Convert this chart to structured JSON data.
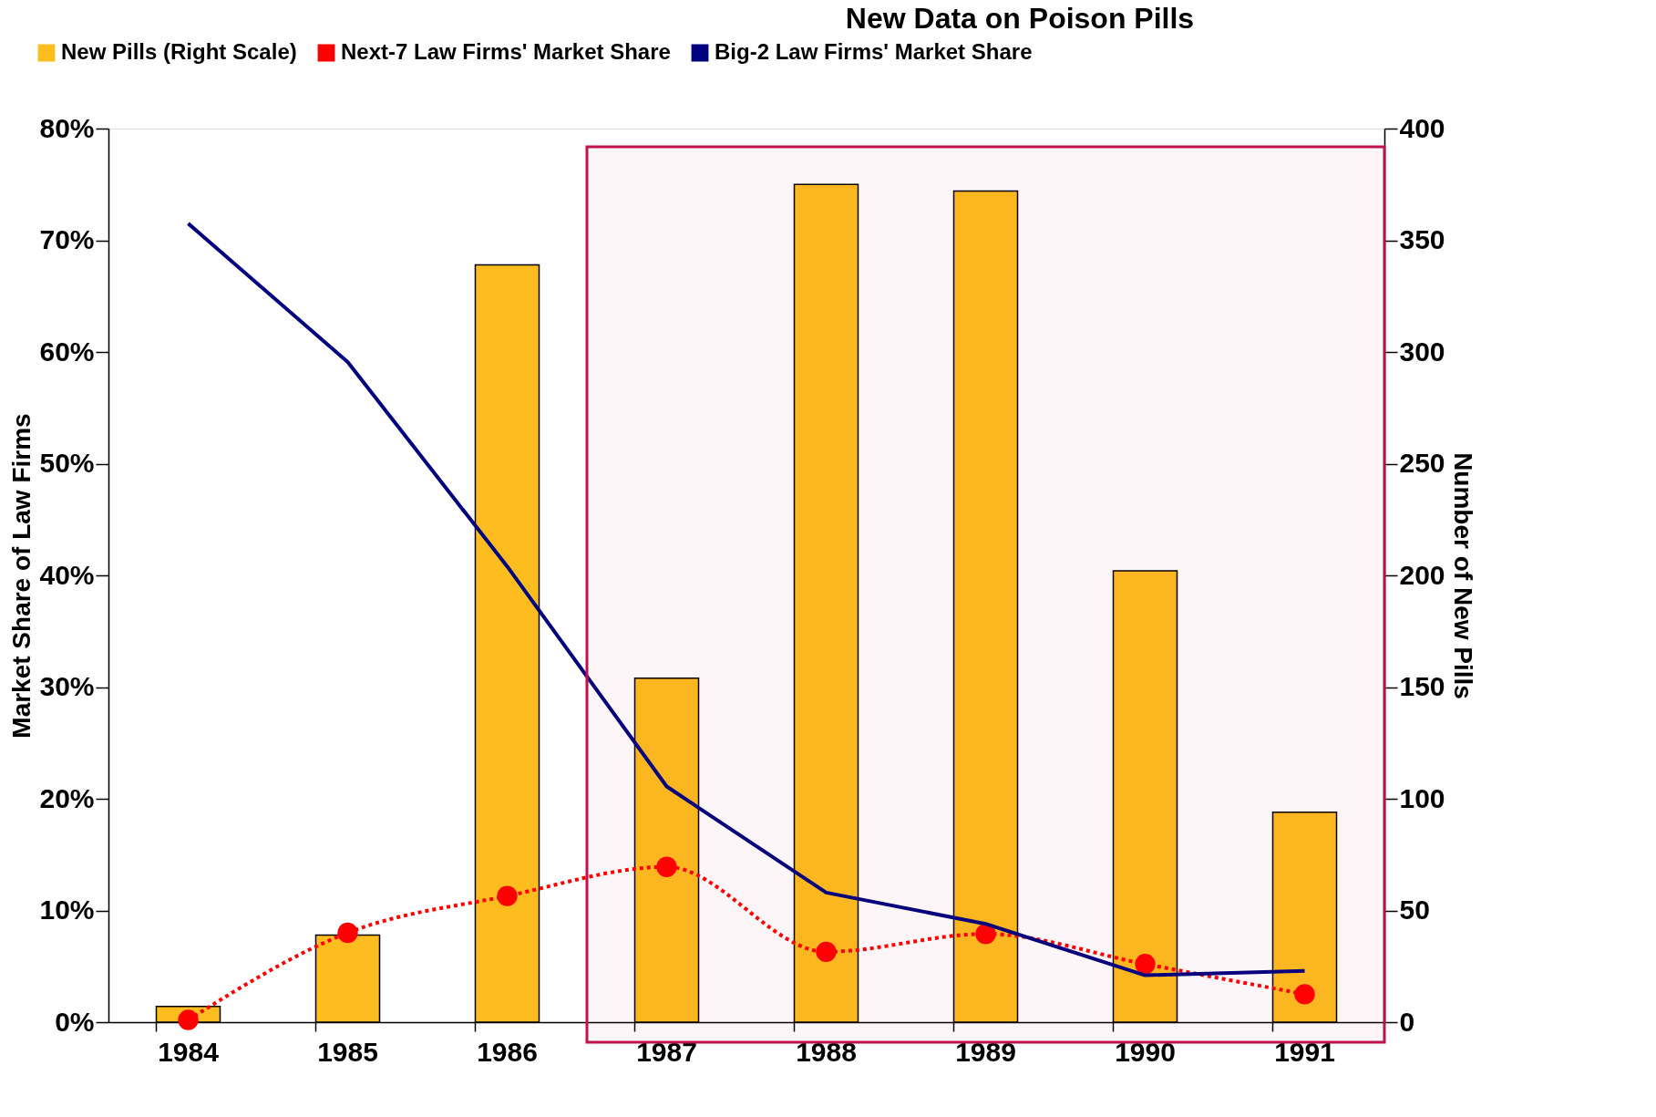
{
  "chart_data": {
    "type": "bar",
    "title": "New Data on Poison Pills",
    "categories": [
      "1984",
      "1985",
      "1986",
      "1987",
      "1988",
      "1989",
      "1990",
      "1991"
    ],
    "series": [
      {
        "name": "New Pills (Right Scale)",
        "axis": "y2",
        "color": "#fdbd1f",
        "values": [
          7,
          39,
          339,
          154,
          375,
          372,
          202,
          94
        ]
      },
      {
        "name": "Next-7 Law Firms' Market Share",
        "type": "line",
        "color": "#ff0000",
        "line_style": "dotted",
        "marker": "circle",
        "values": [
          0.2,
          8.0,
          11.3,
          13.9,
          6.3,
          7.9,
          5.2,
          2.5
        ]
      },
      {
        "name": "Big-2 Law Firms' Market Share",
        "type": "line",
        "color": "#000080",
        "line_style": "solid",
        "marker": "none",
        "values": [
          71.5,
          59.1,
          40.8,
          21.1,
          11.6,
          8.8,
          4.2,
          4.6
        ]
      }
    ],
    "ylabel": "Market Share of Law Firms",
    "y2label": "Number of New Pills",
    "ylim": [
      0,
      80
    ],
    "yticks": [
      {
        "value": 0,
        "label": "0%"
      },
      {
        "value": 10,
        "label": "10%"
      },
      {
        "value": 20,
        "label": "20%"
      },
      {
        "value": 30,
        "label": "30%"
      },
      {
        "value": 40,
        "label": "40%"
      },
      {
        "value": 50,
        "label": "50%"
      },
      {
        "value": 60,
        "label": "60%"
      },
      {
        "value": 70,
        "label": "70%"
      },
      {
        "value": 80,
        "label": "80%"
      }
    ],
    "y2lim": [
      0,
      400
    ],
    "y2ticks": [
      0,
      50,
      100,
      150,
      200,
      250,
      300,
      350,
      400
    ],
    "bands": [
      {
        "axis": "x",
        "from": "1987",
        "to": "1991",
        "color": "#c0104e"
      }
    ],
    "legend": "top",
    "grid": false
  }
}
